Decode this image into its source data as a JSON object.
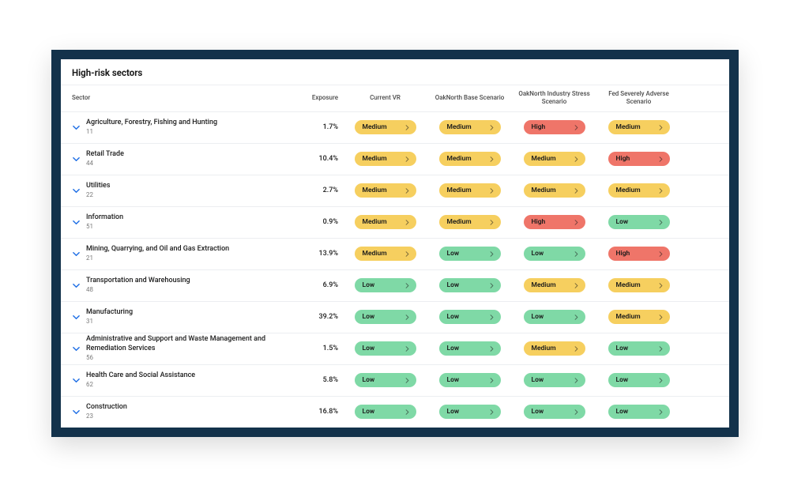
{
  "title": "High-risk sectors",
  "colors": {
    "frame_bg": "#13324b",
    "panel_bg": "#ffffff",
    "row_border": "#eceef1",
    "text_primary": "#1a1a1a",
    "text_muted": "#7a7a7a",
    "chevron_blue": "#1f6fe5",
    "pill": {
      "Low": "#7fd9a6",
      "Medium": "#f6cf5f",
      "High": "#ef7569"
    }
  },
  "columns": {
    "sector": "Sector",
    "exposure": "Exposure",
    "current": "Current VR",
    "base": "OakNorth Base Scenario",
    "stress": "OakNorth Industry Stress Scenario",
    "fed": "Fed Severely Adverse Scenario"
  },
  "rows": [
    {
      "name": "Agriculture, Forestry, Fishing and Hunting",
      "count": "11",
      "exposure": "1.7%",
      "current": "Medium",
      "base": "Medium",
      "stress": "High",
      "fed": "Medium"
    },
    {
      "name": "Retail Trade",
      "count": "44",
      "exposure": "10.4%",
      "current": "Medium",
      "base": "Medium",
      "stress": "Medium",
      "fed": "High"
    },
    {
      "name": "Utilities",
      "count": "22",
      "exposure": "2.7%",
      "current": "Medium",
      "base": "Medium",
      "stress": "Medium",
      "fed": "Medium"
    },
    {
      "name": "Information",
      "count": "51",
      "exposure": "0.9%",
      "current": "Medium",
      "base": "Medium",
      "stress": "High",
      "fed": "Low"
    },
    {
      "name": "Mining, Quarrying, and Oil and Gas Extraction",
      "count": "21",
      "exposure": "13.9%",
      "current": "Medium",
      "base": "Low",
      "stress": "Low",
      "fed": "High"
    },
    {
      "name": "Transportation and Warehousing",
      "count": "48",
      "exposure": "6.9%",
      "current": "Low",
      "base": "Low",
      "stress": "Medium",
      "fed": "Medium"
    },
    {
      "name": "Manufacturing",
      "count": "31",
      "exposure": "39.2%",
      "current": "Low",
      "base": "Low",
      "stress": "Low",
      "fed": "Medium"
    },
    {
      "name": "Administrative and Support and Waste Management and Remediation Services",
      "count": "56",
      "exposure": "1.5%",
      "current": "Low",
      "base": "Low",
      "stress": "Medium",
      "fed": "Low"
    },
    {
      "name": "Health Care and Social Assistance",
      "count": "62",
      "exposure": "5.8%",
      "current": "Low",
      "base": "Low",
      "stress": "Low",
      "fed": "Low"
    },
    {
      "name": "Construction",
      "count": "23",
      "exposure": "16.8%",
      "current": "Low",
      "base": "Low",
      "stress": "Low",
      "fed": "Low"
    }
  ]
}
